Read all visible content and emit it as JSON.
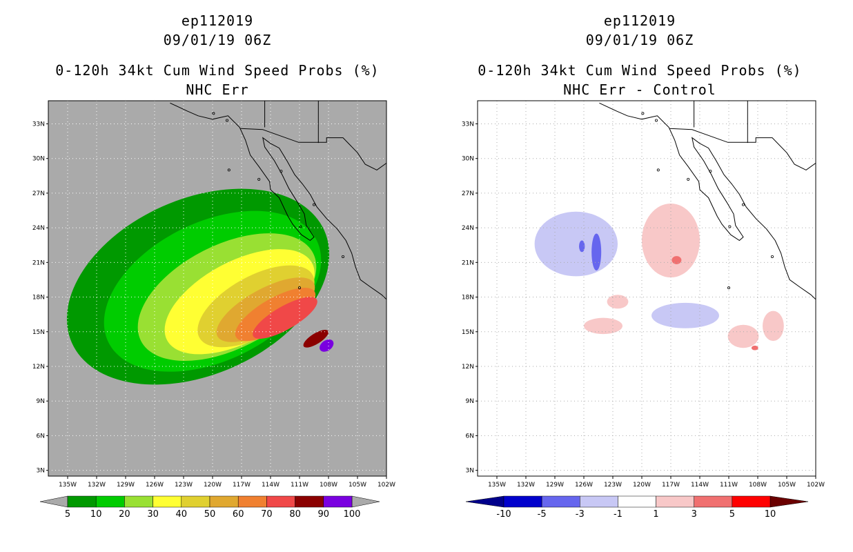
{
  "chart_data": [
    {
      "type": "heatmap",
      "storm_id": "ep112019",
      "datetime": "09/01/19 06Z",
      "title": "0-120h 34kt Cum Wind Speed Probs (%)",
      "subtitle": "NHC Err",
      "lon_ticks": [
        "135W",
        "132W",
        "129W",
        "126W",
        "123W",
        "120W",
        "117W",
        "114W",
        "111W",
        "108W",
        "105W",
        "102W"
      ],
      "lat_ticks": [
        "33N",
        "30N",
        "27N",
        "24N",
        "21N",
        "18N",
        "15N",
        "12N",
        "9N",
        "6N",
        "3N"
      ],
      "xlim": [
        -137,
        -102
      ],
      "ylim": [
        2.5,
        35
      ],
      "grid": true,
      "colorbar": {
        "labels": [
          "5",
          "10",
          "20",
          "30",
          "40",
          "50",
          "60",
          "70",
          "80",
          "90",
          "100"
        ],
        "colors": [
          "#009900",
          "#00cc00",
          "#99e033",
          "#ffff33",
          "#e0d030",
          "#e0a830",
          "#f08030",
          "#f04848",
          "#8b0000",
          "#7a00e0"
        ],
        "end_color": "#aaaaaa"
      },
      "contours": [
        {
          "min": 5,
          "color": "#009900",
          "center": [
            -121.5,
            18.9
          ],
          "a": 14.3,
          "b": 7.6,
          "rot": -24
        },
        {
          "min": 10,
          "color": "#00cc00",
          "center": [
            -120.0,
            18.5
          ],
          "a": 12.0,
          "b": 6.0,
          "rot": -26
        },
        {
          "min": 20,
          "color": "#99e033",
          "center": [
            -118.5,
            18.0
          ],
          "a": 10.0,
          "b": 4.5,
          "rot": -27
        },
        {
          "min": 30,
          "color": "#ffff33",
          "center": [
            -117.2,
            17.6
          ],
          "a": 8.5,
          "b": 3.5,
          "rot": -28
        },
        {
          "min": 40,
          "color": "#e0d030",
          "center": [
            -115.5,
            17.2
          ],
          "a": 6.7,
          "b": 2.6,
          "rot": -29
        },
        {
          "min": 50,
          "color": "#e0a830",
          "center": [
            -114.5,
            16.9
          ],
          "a": 5.7,
          "b": 1.8,
          "rot": -29
        },
        {
          "min": 60,
          "color": "#f08030",
          "center": [
            -113.5,
            16.5
          ],
          "a": 4.7,
          "b": 1.4,
          "rot": -30
        },
        {
          "min": 70,
          "color": "#f04848",
          "center": [
            -112.5,
            16.2
          ],
          "a": 3.8,
          "b": 1.0,
          "rot": -30
        },
        {
          "min": 80,
          "color": "#8b0000",
          "center": [
            -109.3,
            14.4
          ],
          "a": 1.5,
          "b": 0.45,
          "rot": -32
        },
        {
          "min": 90,
          "color": "#7a00e0",
          "center": [
            -108.2,
            13.8
          ],
          "a": 0.8,
          "b": 0.45,
          "rot": -35
        }
      ]
    },
    {
      "type": "heatmap",
      "storm_id": "ep112019",
      "datetime": "09/01/19 06Z",
      "title": "0-120h 34kt Cum Wind Speed Probs (%)",
      "subtitle": "NHC Err - Control",
      "lon_ticks": [
        "135W",
        "132W",
        "129W",
        "126W",
        "123W",
        "120W",
        "117W",
        "114W",
        "111W",
        "108W",
        "105W",
        "102W"
      ],
      "lat_ticks": [
        "33N",
        "30N",
        "27N",
        "24N",
        "21N",
        "18N",
        "15N",
        "12N",
        "9N",
        "6N",
        "3N"
      ],
      "xlim": [
        -137,
        -102
      ],
      "ylim": [
        2.5,
        35
      ],
      "grid": true,
      "colorbar": {
        "labels": [
          "-10",
          "-5",
          "-3",
          "-1",
          "1",
          "3",
          "5",
          "10"
        ],
        "colors": [
          "#0000cc",
          "#6666ee",
          "#c8c8f5",
          "#ffffff",
          "#f8c8c8",
          "#f07070",
          "#ff0000"
        ],
        "low_end_color": "#00008b",
        "high_end_color": "#6b0000"
      },
      "anomalies": [
        {
          "sign": "neg",
          "level": -1,
          "center": [
            -126.8,
            22.6
          ],
          "rx": 4.3,
          "ry": 2.8
        },
        {
          "sign": "neg",
          "level": -3,
          "center": [
            -124.7,
            21.9
          ],
          "rx": 0.5,
          "ry": 1.6
        },
        {
          "sign": "neg",
          "level": -3,
          "center": [
            -126.2,
            22.4
          ],
          "rx": 0.3,
          "ry": 0.5
        },
        {
          "sign": "pos",
          "level": 1,
          "center": [
            -117.0,
            22.9
          ],
          "rx": 3.0,
          "ry": 3.2
        },
        {
          "sign": "pos",
          "level": 3,
          "center": [
            -116.4,
            21.2
          ],
          "rx": 0.5,
          "ry": 0.35
        },
        {
          "sign": "neg",
          "level": -1,
          "center": [
            -115.5,
            16.4
          ],
          "rx": 3.5,
          "ry": 1.1
        },
        {
          "sign": "pos",
          "level": 1,
          "center": [
            -124.0,
            15.5
          ],
          "rx": 2.0,
          "ry": 0.7
        },
        {
          "sign": "pos",
          "level": 1,
          "center": [
            -122.5,
            17.6
          ],
          "rx": 1.1,
          "ry": 0.6
        },
        {
          "sign": "pos",
          "level": 1,
          "center": [
            -109.5,
            14.6
          ],
          "rx": 1.6,
          "ry": 1.0
        },
        {
          "sign": "pos",
          "level": 1,
          "center": [
            -106.4,
            15.5
          ],
          "rx": 1.1,
          "ry": 1.3
        },
        {
          "sign": "pos",
          "level": 3,
          "center": [
            -108.3,
            13.6
          ],
          "rx": 0.35,
          "ry": 0.2
        }
      ]
    }
  ]
}
